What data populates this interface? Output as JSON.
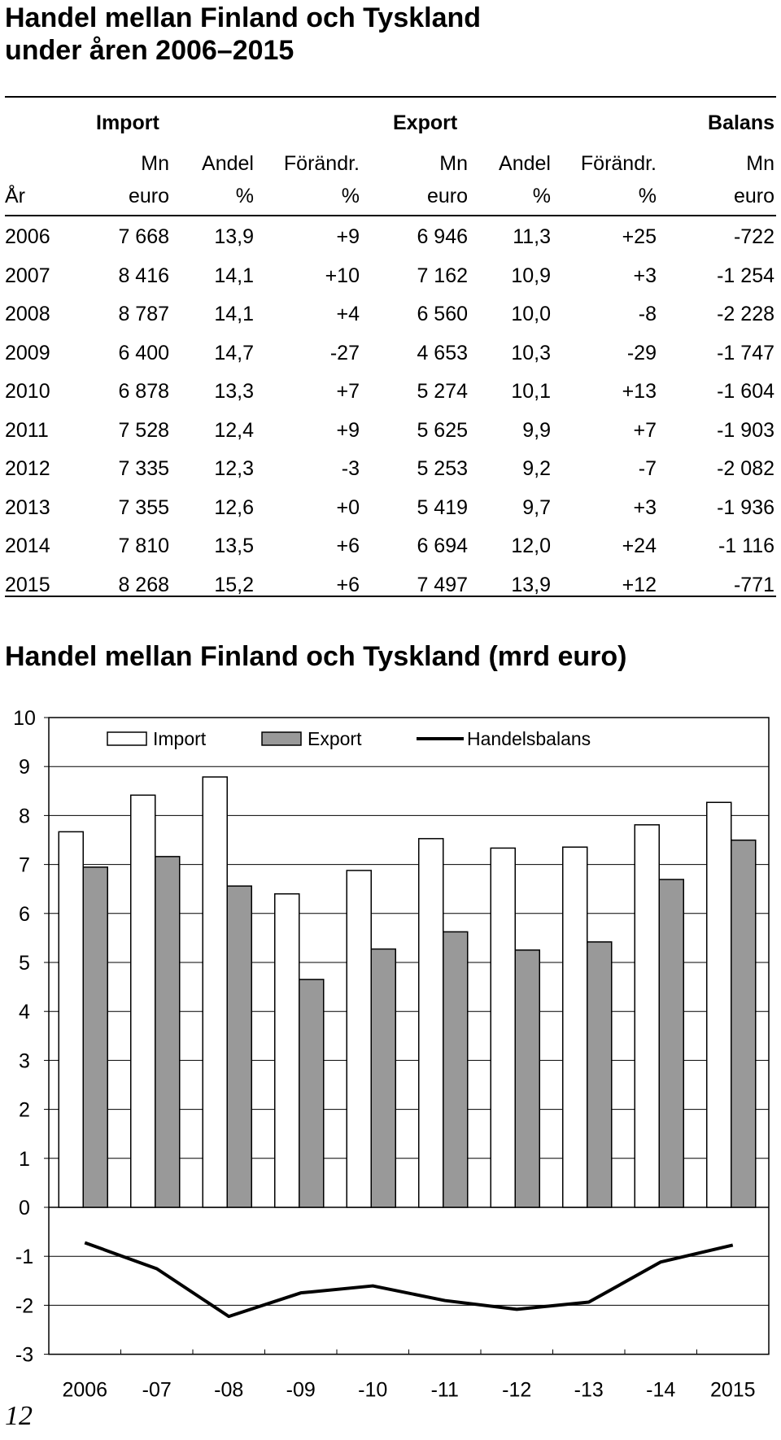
{
  "title": [
    "Handel mellan Finland och Tyskland",
    "under åren 2006–2015"
  ],
  "table": {
    "groups": {
      "import": "Import",
      "export": "Export",
      "balans": "Balans"
    },
    "header_row1": [
      "",
      "Mn",
      "Andel",
      "Förändr.",
      "Mn",
      "Andel",
      "Förändr.",
      "Mn"
    ],
    "header_row2": [
      "År",
      "euro",
      "%",
      "%",
      "euro",
      "%",
      "%",
      "euro"
    ],
    "rows": [
      [
        "2006",
        "7 668",
        "13,9",
        "+9",
        "6 946",
        "11,3",
        "+25",
        "-722"
      ],
      [
        "2007",
        "8 416",
        "14,1",
        "+10",
        "7 162",
        "10,9",
        "+3",
        "-1 254"
      ],
      [
        "2008",
        "8 787",
        "14,1",
        "+4",
        "6 560",
        "10,0",
        "-8",
        "-2 228"
      ],
      [
        "2009",
        "6 400",
        "14,7",
        "-27",
        "4 653",
        "10,3",
        "-29",
        "-1 747"
      ],
      [
        "2010",
        "6 878",
        "13,3",
        "+7",
        "5 274",
        "10,1",
        "+13",
        "-1 604"
      ],
      [
        "2011",
        "7 528",
        "12,4",
        "+9",
        "5 625",
        "9,9",
        "+7",
        "-1 903"
      ],
      [
        "2012",
        "7 335",
        "12,3",
        "-3",
        "5 253",
        "9,2",
        "-7",
        "-2 082"
      ],
      [
        "2013",
        "7 355",
        "12,6",
        "+0",
        "5 419",
        "9,7",
        "+3",
        "-1 936"
      ],
      [
        "2014",
        "7 810",
        "13,5",
        "+6",
        "6 694",
        "12,0",
        "+24",
        "-1 116"
      ],
      [
        "2015",
        "8 268",
        "15,2",
        "+6",
        "7 497",
        "13,9",
        "+12",
        "-771"
      ]
    ]
  },
  "chart_title": "Handel mellan Finland och Tyskland (mrd euro)",
  "chart_data": {
    "type": "bar",
    "categories": [
      "2006",
      "-07",
      "-08",
      "-09",
      "-10",
      "-11",
      "-12",
      "-13",
      "-14",
      "2015"
    ],
    "series": [
      {
        "name": "Import",
        "type": "bar",
        "color": "#ffffff",
        "values": [
          7.668,
          8.416,
          8.787,
          6.4,
          6.878,
          7.528,
          7.335,
          7.355,
          7.81,
          8.268
        ]
      },
      {
        "name": "Export",
        "type": "bar",
        "color": "#999999",
        "values": [
          6.946,
          7.162,
          6.56,
          4.653,
          5.274,
          5.625,
          5.253,
          5.419,
          6.694,
          7.497
        ]
      },
      {
        "name": "Handelsbalans",
        "type": "line",
        "color": "#000000",
        "values": [
          -0.722,
          -1.254,
          -2.228,
          -1.747,
          -1.604,
          -1.903,
          -2.082,
          -1.936,
          -1.116,
          -0.771
        ]
      }
    ],
    "yticks": [
      "10",
      "9",
      "8",
      "7",
      "6",
      "5",
      "4",
      "3",
      "2",
      "1",
      "0",
      "-1",
      "-2",
      "-3"
    ],
    "ylim": [
      -3,
      10
    ],
    "grid": true,
    "legend": "top"
  },
  "page_number": "12"
}
